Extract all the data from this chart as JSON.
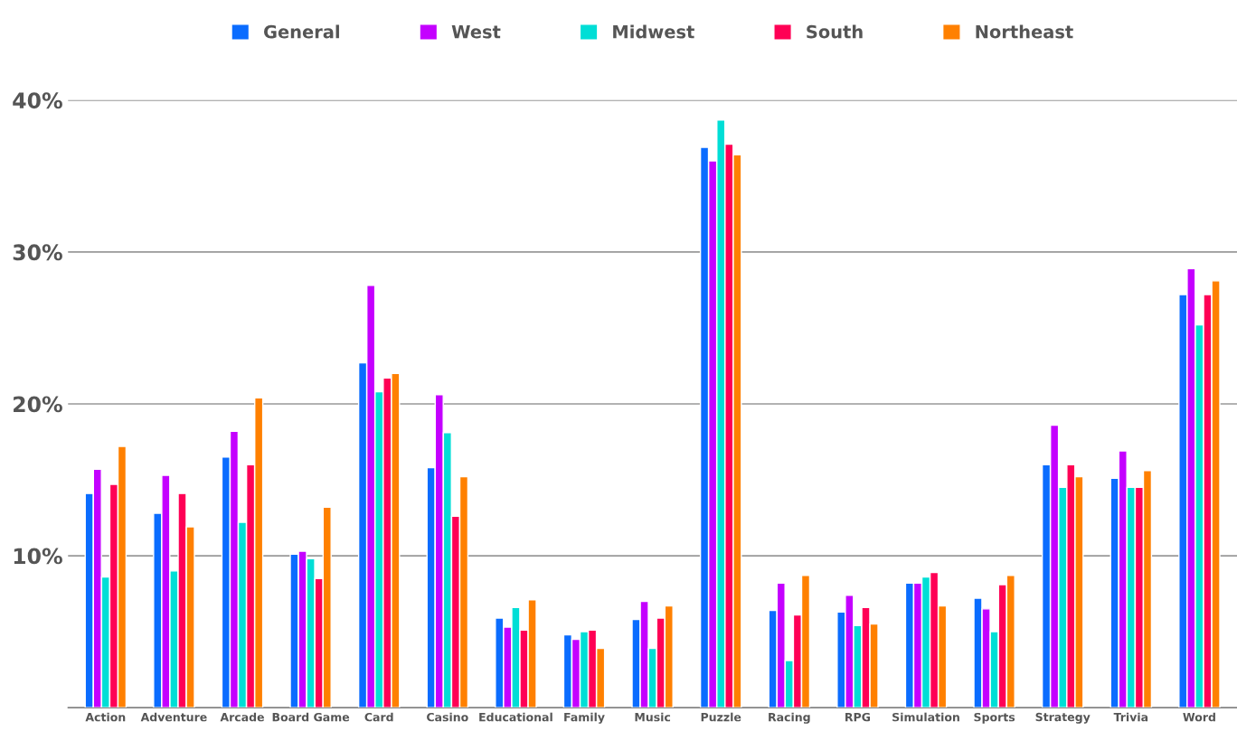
{
  "chart_data": {
    "type": "bar",
    "categories": [
      "Action",
      "Adventure",
      "Arcade",
      "Board Game",
      "Card",
      "Casino",
      "Educational",
      "Family",
      "Music",
      "Puzzle",
      "Racing",
      "RPG",
      "Simulation",
      "Sports",
      "Strategy",
      "Trivia",
      "Word"
    ],
    "series": [
      {
        "name": "General",
        "color": "#0a6cff",
        "values": [
          14.1,
          12.8,
          16.5,
          10.1,
          22.7,
          15.8,
          5.9,
          4.8,
          5.8,
          36.9,
          6.4,
          6.3,
          8.2,
          7.2,
          16.0,
          15.1,
          27.2
        ]
      },
      {
        "name": "West",
        "color": "#c400ff",
        "values": [
          15.7,
          15.3,
          18.2,
          10.3,
          27.8,
          20.6,
          5.3,
          4.5,
          7.0,
          36.0,
          8.2,
          7.4,
          8.2,
          6.5,
          18.6,
          16.9,
          28.9
        ]
      },
      {
        "name": "Midwest",
        "color": "#00ded6",
        "values": [
          8.6,
          9.0,
          12.2,
          9.8,
          20.8,
          18.1,
          6.6,
          5.0,
          3.9,
          38.7,
          3.1,
          5.4,
          8.6,
          5.0,
          14.5,
          14.5,
          25.2
        ]
      },
      {
        "name": "South",
        "color": "#ff0055",
        "values": [
          14.7,
          14.1,
          16.0,
          8.5,
          21.7,
          12.6,
          5.1,
          5.1,
          5.9,
          37.1,
          6.1,
          6.6,
          8.9,
          8.1,
          16.0,
          14.5,
          27.2
        ]
      },
      {
        "name": "Northeast",
        "color": "#ff8000",
        "values": [
          17.2,
          11.9,
          20.4,
          13.2,
          22.0,
          15.2,
          7.1,
          3.9,
          6.7,
          36.4,
          8.7,
          5.5,
          6.7,
          8.7,
          15.2,
          15.6,
          28.1
        ]
      }
    ],
    "ylim": [
      0,
      40
    ],
    "yticks": [
      {
        "value": 10,
        "label": "10%"
      },
      {
        "value": 20,
        "label": "20%"
      },
      {
        "value": 30,
        "label": "30%"
      },
      {
        "value": 40,
        "label": "40%"
      }
    ],
    "grid": "y",
    "legend": "top"
  }
}
